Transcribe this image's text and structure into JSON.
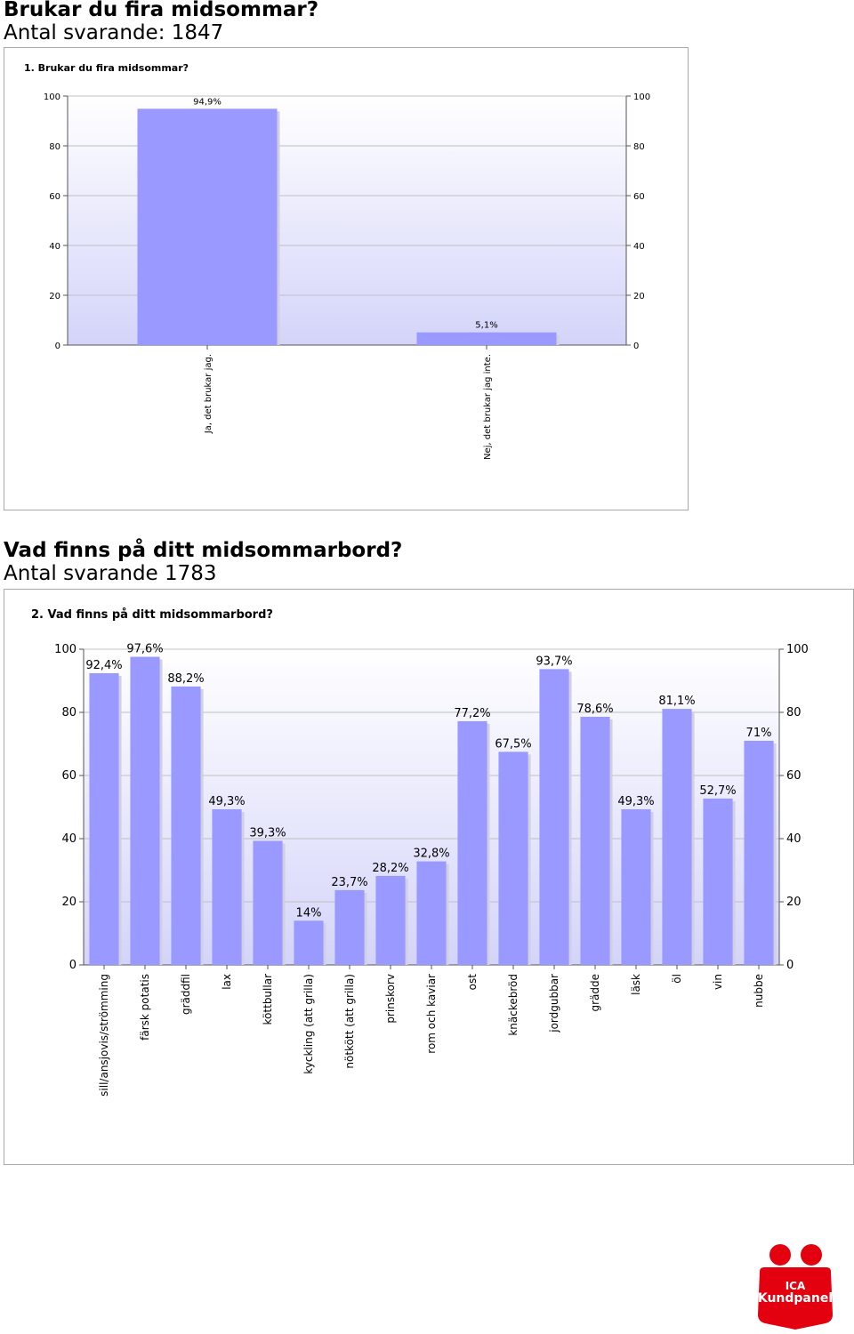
{
  "headings": [
    {
      "title": "Brukar du fira midsommar?",
      "subtitle": "Antal svarande: 1847"
    },
    {
      "title": "Vad finns på ditt midsommarbord?",
      "subtitle": "Antal svarande 1783"
    }
  ],
  "logo": {
    "line1": "ICA",
    "line2": "Kundpanel",
    "color": "#e3000f"
  },
  "colors": {
    "bar": "#9999ff",
    "bar_shadow": "#d0d0e0",
    "plot_top": "#ffffff",
    "plot_bottom": "#d4d4fa",
    "grid": "#c0c0c0",
    "axis": "#555555"
  },
  "chart_data": [
    {
      "type": "bar",
      "title": "1. Brukar du fira midsommar?",
      "categories": [
        "Ja, det brukar jag.",
        "Nej, det brukar jag inte."
      ],
      "values": [
        94.9,
        5.1
      ],
      "value_labels": [
        "94,9%",
        "5,1%"
      ],
      "ylim": [
        0,
        100
      ],
      "yticks": [
        0,
        20,
        40,
        60,
        80,
        100
      ],
      "xlabel": "",
      "ylabel": "",
      "grid": true
    },
    {
      "type": "bar",
      "title": "2. Vad finns på ditt midsommarbord?",
      "categories": [
        "sill/ansjovis/strömming",
        "färsk potatis",
        "gräddfil",
        "lax",
        "köttbullar",
        "kyckling (att grilla)",
        "nötkött (att grilla)",
        "prinskorv",
        "rom och kaviar",
        "ost",
        "knäckebröd",
        "jordgubbar",
        "grädde",
        "läsk",
        "öl",
        "vin",
        "nubbe"
      ],
      "values": [
        92.4,
        97.6,
        88.2,
        49.3,
        39.3,
        14,
        23.7,
        28.2,
        32.8,
        77.2,
        67.5,
        93.7,
        78.6,
        49.3,
        81.1,
        52.7,
        71
      ],
      "value_labels": [
        "92,4%",
        "97,6%",
        "88,2%",
        "49,3%",
        "39,3%",
        "14%",
        "23,7%",
        "28,2%",
        "32,8%",
        "77,2%",
        "67,5%",
        "93,7%",
        "78,6%",
        "49,3%",
        "81,1%",
        "52,7%",
        "71%"
      ],
      "ylim": [
        0,
        100
      ],
      "yticks": [
        0,
        20,
        40,
        60,
        80,
        100
      ],
      "xlabel": "",
      "ylabel": "",
      "grid": true
    }
  ]
}
